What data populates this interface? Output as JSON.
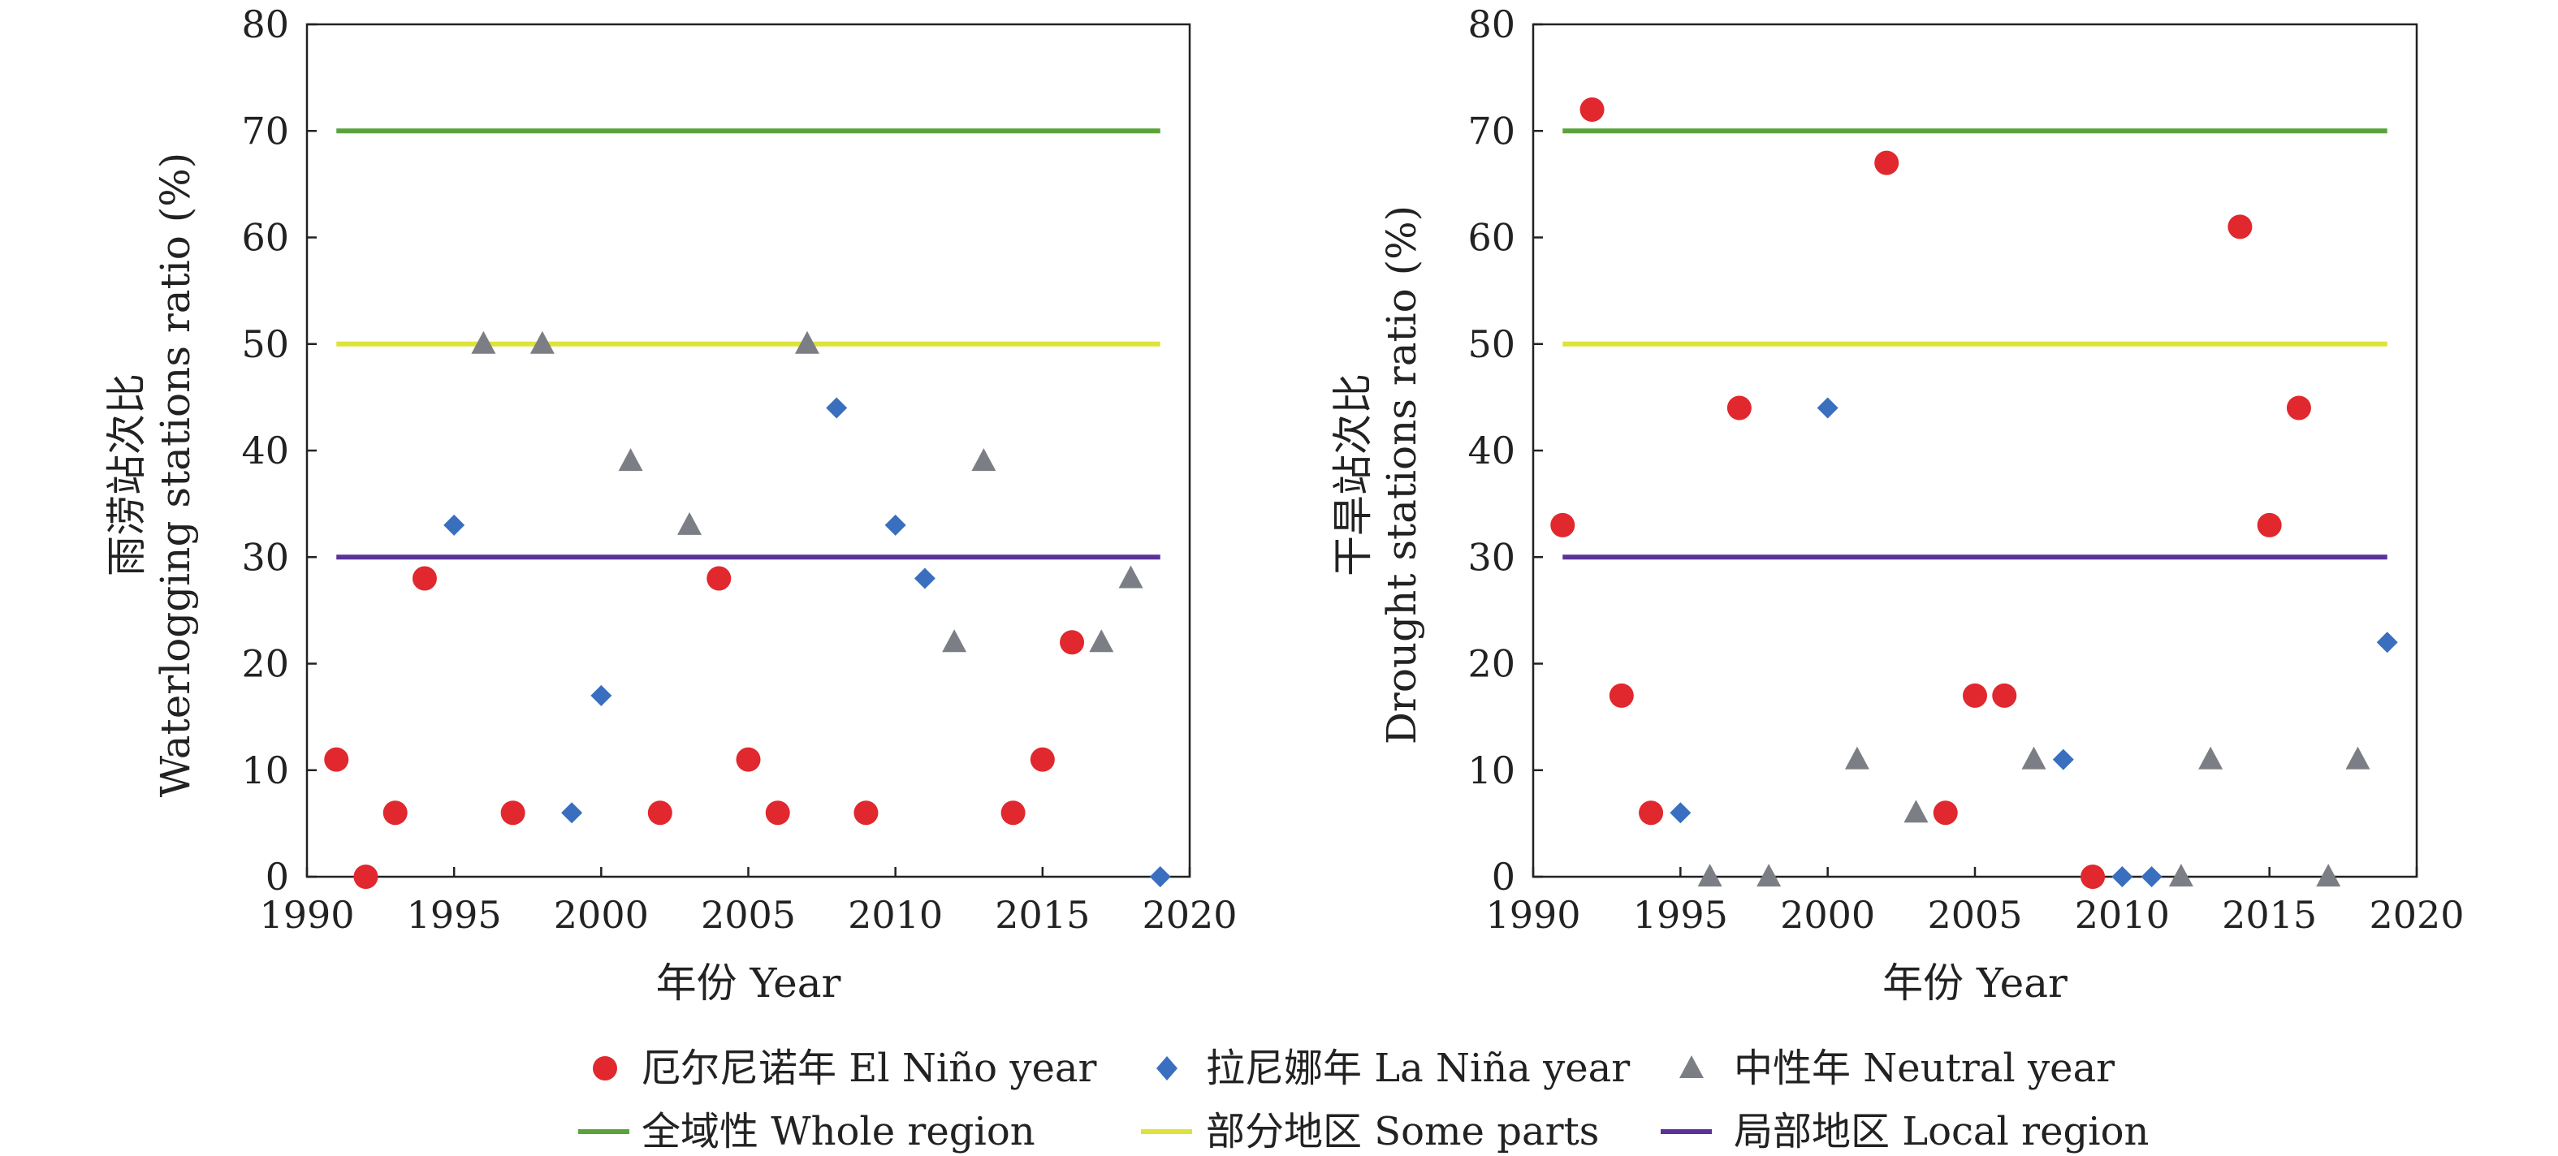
{
  "legend": {
    "markers": [
      {
        "key": "el_nino",
        "label": "厄尔尼诺年 El Niño year",
        "shape": "circle",
        "color": "#e0282e"
      },
      {
        "key": "la_nina",
        "label": "拉尼娜年 La Niña year",
        "shape": "diamond",
        "color": "#3a6fbf"
      },
      {
        "key": "neutral",
        "label": "中性年 Neutral year",
        "shape": "triangle",
        "color": "#7b7f85"
      }
    ],
    "lines": [
      {
        "key": "whole",
        "label": "全域性 Whole region",
        "color": "#5aa33c"
      },
      {
        "key": "some",
        "label": "部分地区 Some parts",
        "color": "#dde33a"
      },
      {
        "key": "local",
        "label": "局部地区 Local region",
        "color": "#5a3398"
      }
    ]
  },
  "chart_data": [
    {
      "type": "scatter",
      "ylabel_cn": "雨涝站次比",
      "ylabel_en": "Waterlogging stations ratio (%)",
      "xlabel": "年份 Year",
      "xlim": [
        1990,
        2020
      ],
      "ylim": [
        0,
        80
      ],
      "xticks": [
        1990,
        1995,
        2000,
        2005,
        2010,
        2015,
        2020
      ],
      "yticks": [
        0,
        10,
        20,
        30,
        40,
        50,
        60,
        70,
        80
      ],
      "grid": false,
      "reference_lines": [
        {
          "name": "全域性 Whole region",
          "y": 70,
          "x_range": [
            1991,
            2019
          ]
        },
        {
          "name": "部分地区 Some parts",
          "y": 50,
          "x_range": [
            1991,
            2019
          ]
        },
        {
          "name": "局部地区 Local region",
          "y": 30,
          "x_range": [
            1991,
            2019
          ]
        }
      ],
      "series": [
        {
          "name": "厄尔尼诺年 El Niño year",
          "points": [
            [
              1991,
              11
            ],
            [
              1992,
              0
            ],
            [
              1993,
              6
            ],
            [
              1994,
              28
            ],
            [
              1997,
              6
            ],
            [
              2002,
              6
            ],
            [
              2004,
              28
            ],
            [
              2005,
              11
            ],
            [
              2006,
              6
            ],
            [
              2009,
              6
            ],
            [
              2014,
              6
            ],
            [
              2015,
              11
            ],
            [
              2016,
              22
            ]
          ]
        },
        {
          "name": "拉尼娜年 La Niña year",
          "points": [
            [
              1995,
              33
            ],
            [
              1999,
              6
            ],
            [
              2000,
              17
            ],
            [
              2008,
              44
            ],
            [
              2010,
              33
            ],
            [
              2011,
              28
            ],
            [
              2019,
              0
            ]
          ]
        },
        {
          "name": "中性年 Neutral year",
          "points": [
            [
              1996,
              50
            ],
            [
              1998,
              50
            ],
            [
              2001,
              39
            ],
            [
              2003,
              33
            ],
            [
              2007,
              50
            ],
            [
              2012,
              22
            ],
            [
              2013,
              39
            ],
            [
              2017,
              22
            ],
            [
              2018,
              28
            ]
          ]
        }
      ]
    },
    {
      "type": "scatter",
      "ylabel_cn": "干旱站次比",
      "ylabel_en": "Drought stations ratio (%)",
      "xlabel": "年份 Year",
      "xlim": [
        1990,
        2020
      ],
      "ylim": [
        0,
        80
      ],
      "xticks": [
        1990,
        1995,
        2000,
        2005,
        2010,
        2015,
        2020
      ],
      "yticks": [
        0,
        10,
        20,
        30,
        40,
        50,
        60,
        70,
        80
      ],
      "grid": false,
      "reference_lines": [
        {
          "name": "全域性 Whole region",
          "y": 70,
          "x_range": [
            1991,
            2019
          ]
        },
        {
          "name": "部分地区 Some parts",
          "y": 50,
          "x_range": [
            1991,
            2019
          ]
        },
        {
          "name": "局部地区 Local region",
          "y": 30,
          "x_range": [
            1991,
            2019
          ]
        }
      ],
      "series": [
        {
          "name": "厄尔尼诺年 El Niño year",
          "points": [
            [
              1991,
              33
            ],
            [
              1992,
              72
            ],
            [
              1993,
              17
            ],
            [
              1994,
              6
            ],
            [
              1997,
              44
            ],
            [
              2002,
              67
            ],
            [
              2004,
              6
            ],
            [
              2005,
              17
            ],
            [
              2006,
              17
            ],
            [
              2009,
              0
            ],
            [
              2014,
              61
            ],
            [
              2015,
              33
            ],
            [
              2016,
              44
            ]
          ]
        },
        {
          "name": "拉尼娜年 La Niña year",
          "points": [
            [
              1995,
              6
            ],
            [
              2000,
              44
            ],
            [
              2008,
              11
            ],
            [
              2010,
              0
            ],
            [
              2011,
              0
            ],
            [
              2019,
              22
            ]
          ]
        },
        {
          "name": "中性年 Neutral year",
          "points": [
            [
              1996,
              0
            ],
            [
              1998,
              0
            ],
            [
              2001,
              11
            ],
            [
              2003,
              6
            ],
            [
              2007,
              11
            ],
            [
              2012,
              0
            ],
            [
              2013,
              11
            ],
            [
              2017,
              0
            ],
            [
              2018,
              11
            ]
          ]
        }
      ]
    }
  ]
}
